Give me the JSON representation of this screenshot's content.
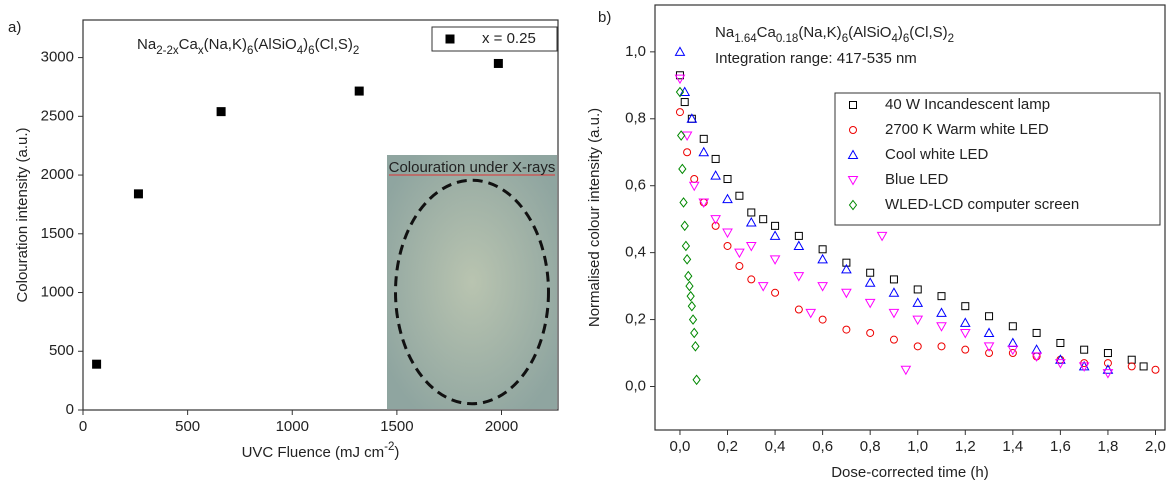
{
  "chart_data": [
    {
      "type": "scatter",
      "panel_label": "a)",
      "title": [
        {
          "text": "Na"
        },
        {
          "text": "2-2x",
          "sub": true
        },
        {
          "text": "Ca"
        },
        {
          "text": "x",
          "sub": true
        },
        {
          "text": "(Na,K)"
        },
        {
          "text": "6",
          "sub": true
        },
        {
          "text": "(AlSiO"
        },
        {
          "text": "4",
          "sub": true
        },
        {
          "text": ")"
        },
        {
          "text": "6",
          "sub": true
        },
        {
          "text": "(Cl,S)"
        },
        {
          "text": "2",
          "sub": true
        }
      ],
      "x_label": [
        {
          "text": "UVC Fluence (mJ cm"
        },
        {
          "text": "-2",
          "sup": true
        },
        {
          "text": ")"
        }
      ],
      "y_label": [
        {
          "text": "Colouration intensity (a.u.)"
        }
      ],
      "inset_caption": "Colouration under X-rays",
      "xlim": [
        0,
        2270
      ],
      "xticks": [
        0,
        500,
        1000,
        1500,
        2000
      ],
      "ylim": [
        0,
        3320
      ],
      "yticks": [
        0,
        500,
        1000,
        1500,
        2000,
        2500,
        3000
      ],
      "legend": "upper right",
      "series": [
        {
          "name": "x = 0.25",
          "color": "#000000",
          "marker": "square-filled",
          "x": [
            65,
            265,
            660,
            1320,
            1985
          ],
          "values": [
            390,
            1840,
            2540,
            2715,
            2950
          ]
        }
      ]
    },
    {
      "type": "scatter",
      "panel_label": "b)",
      "title": [
        {
          "text": "Na"
        },
        {
          "text": "1.64",
          "sub": true
        },
        {
          "text": "Ca"
        },
        {
          "text": "0.18",
          "sub": true
        },
        {
          "text": "(Na,K)"
        },
        {
          "text": "6",
          "sub": true
        },
        {
          "text": "(AlSiO"
        },
        {
          "text": "4",
          "sub": true
        },
        {
          "text": ")"
        },
        {
          "text": "6",
          "sub": true
        },
        {
          "text": "(Cl,S)"
        },
        {
          "text": "2",
          "sub": true
        }
      ],
      "subtitle": "Integration range: 417-535 nm",
      "x_label": [
        {
          "text": "Dose-corrected time (h)"
        }
      ],
      "y_label": [
        {
          "text": "Normalised colour intensity (a.u.)"
        }
      ],
      "xlim": [
        -0.105,
        2.04
      ],
      "xticks": [
        {
          "value": 0,
          "label": "0,0"
        },
        {
          "value": 0.2,
          "label": "0,2"
        },
        {
          "value": 0.4,
          "label": "0,4"
        },
        {
          "value": 0.6,
          "label": "0,6"
        },
        {
          "value": 0.8,
          "label": "0,8"
        },
        {
          "value": 1,
          "label": "1,0"
        },
        {
          "value": 1.2,
          "label": "1,2"
        },
        {
          "value": 1.4,
          "label": "1,4"
        },
        {
          "value": 1.6,
          "label": "1,6"
        },
        {
          "value": 1.8,
          "label": "1,8"
        },
        {
          "value": 2,
          "label": "2,0"
        }
      ],
      "ylim": [
        -0.13,
        1.14
      ],
      "yticks": [
        {
          "value": 0,
          "label": "0,0"
        },
        {
          "value": 0.2,
          "label": "0,2"
        },
        {
          "value": 0.4,
          "label": "0,4"
        },
        {
          "value": 0.6,
          "label": "0,6"
        },
        {
          "value": 0.8,
          "label": "0,8"
        },
        {
          "value": 1,
          "label": "1,0"
        }
      ],
      "legend": "upper right",
      "series": [
        {
          "name": "40 W Incandescent lamp",
          "color": "#000000",
          "marker": "square",
          "x": [
            0.0,
            0.02,
            0.05,
            0.1,
            0.15,
            0.2,
            0.25,
            0.3,
            0.35,
            0.4,
            0.5,
            0.6,
            0.7,
            0.8,
            0.9,
            1.0,
            1.1,
            1.2,
            1.3,
            1.4,
            1.5,
            1.6,
            1.7,
            1.8,
            1.9,
            1.95
          ],
          "values": [
            0.93,
            0.85,
            0.8,
            0.74,
            0.68,
            0.62,
            0.57,
            0.52,
            0.5,
            0.48,
            0.45,
            0.41,
            0.37,
            0.34,
            0.32,
            0.29,
            0.27,
            0.24,
            0.21,
            0.18,
            0.16,
            0.13,
            0.11,
            0.1,
            0.08,
            0.06
          ]
        },
        {
          "name": "2700 K Warm white LED",
          "color": "#ee0000",
          "marker": "circle",
          "x": [
            0.0,
            0.03,
            0.06,
            0.1,
            0.15,
            0.2,
            0.25,
            0.3,
            0.4,
            0.5,
            0.6,
            0.7,
            0.8,
            0.9,
            1.0,
            1.1,
            1.2,
            1.3,
            1.4,
            1.5,
            1.6,
            1.7,
            1.8,
            1.9,
            2.0
          ],
          "values": [
            0.82,
            0.7,
            0.62,
            0.55,
            0.48,
            0.42,
            0.36,
            0.32,
            0.28,
            0.23,
            0.2,
            0.17,
            0.16,
            0.14,
            0.12,
            0.12,
            0.11,
            0.1,
            0.1,
            0.09,
            0.08,
            0.07,
            0.07,
            0.06,
            0.05
          ]
        },
        {
          "name": "Cool white LED",
          "color": "#0000ff",
          "marker": "triangle",
          "x": [
            0.0,
            0.02,
            0.05,
            0.1,
            0.15,
            0.2,
            0.3,
            0.4,
            0.5,
            0.6,
            0.7,
            0.8,
            0.9,
            1.0,
            1.1,
            1.2,
            1.3,
            1.4,
            1.5,
            1.6,
            1.7,
            1.8
          ],
          "values": [
            1.0,
            0.88,
            0.8,
            0.7,
            0.63,
            0.56,
            0.49,
            0.45,
            0.42,
            0.38,
            0.35,
            0.31,
            0.28,
            0.25,
            0.22,
            0.19,
            0.16,
            0.13,
            0.11,
            0.08,
            0.06,
            0.05
          ]
        },
        {
          "name": "Blue LED",
          "color": "#ff00ff",
          "marker": "triangle-down",
          "x": [
            0.0,
            0.03,
            0.06,
            0.1,
            0.15,
            0.2,
            0.25,
            0.3,
            0.35,
            0.4,
            0.5,
            0.55,
            0.6,
            0.7,
            0.8,
            0.85,
            0.9,
            0.95,
            1.0,
            1.1,
            1.2,
            1.3,
            1.4,
            1.5,
            1.6,
            1.7,
            1.8
          ],
          "values": [
            0.92,
            0.75,
            0.6,
            0.55,
            0.5,
            0.46,
            0.4,
            0.42,
            0.3,
            0.38,
            0.33,
            0.22,
            0.3,
            0.28,
            0.25,
            0.45,
            0.22,
            0.05,
            0.2,
            0.18,
            0.16,
            0.12,
            0.11,
            0.09,
            0.07,
            0.06,
            0.04
          ]
        },
        {
          "name": "WLED-LCD computer screen",
          "color": "#008800",
          "marker": "diamond",
          "x": [
            0.0,
            0.005,
            0.01,
            0.015,
            0.02,
            0.025,
            0.03,
            0.035,
            0.04,
            0.045,
            0.05,
            0.055,
            0.06,
            0.065,
            0.07
          ],
          "values": [
            0.88,
            0.75,
            0.65,
            0.55,
            0.48,
            0.42,
            0.38,
            0.33,
            0.3,
            0.27,
            0.24,
            0.2,
            0.16,
            0.12,
            0.02
          ]
        }
      ]
    }
  ]
}
